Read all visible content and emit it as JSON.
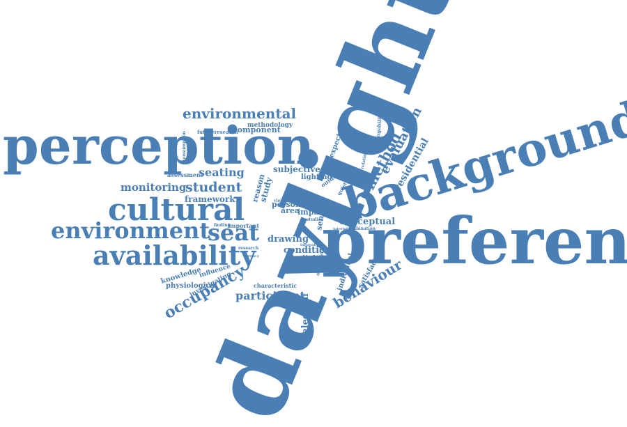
{
  "colors": {
    "word": "#4a7fb5",
    "background": "#ffffff"
  },
  "words": {
    "daylight": "daylight",
    "preference": "preference",
    "background": "background",
    "perception": "perception",
    "cultural": "cultural",
    "environment": "environment",
    "availability": "availability",
    "seat": "seat",
    "behaviour": "behaviour",
    "occupancy": "occupancy",
    "participant": "participant",
    "environmental": "environmental",
    "method": "method",
    "evaluation": "evaluation",
    "residential": "residential",
    "seating": "seating",
    "student": "student",
    "monitoring": "monitoring",
    "framework": "framework",
    "conceptual": "conceptual",
    "drawing": "drawing",
    "condition": "condition",
    "component": "component",
    "methodology": "methodology",
    "futureresearch": "futureresearch",
    "assessment": "assessment",
    "subjective": "subjective",
    "lighting": "lighting",
    "study": "study",
    "reason": "reason",
    "person": "person",
    "area": "area",
    "impact": "impact",
    "context": "context",
    "sensor": "sensor",
    "expectation": "expectation",
    "learningabilities": "learningabilities",
    "satisfaction": "satisfaction",
    "individual": "individual",
    "selection": "selection",
    "knowledge": "knowledge",
    "influence": "influence",
    "physiological": "physiological",
    "investigating": "investigating",
    "characteristic": "characteristic",
    "daylighting": "daylighting",
    "important": "important",
    "research": "research",
    "combination": "combination",
    "outdoor": "outdoor",
    "highlighted": "highlighted",
    "occupied": "occupied",
    "finding": "finding",
    "studies": "studies",
    "quietness": "quietness",
    "relationship": "relationship",
    "consumption": "consumption",
    "interior": "interior",
    "view": "view",
    "level": "level",
    "space": "space",
    "actual": "actual",
    "different": "different",
    "limited": "limited",
    "privacy": "privacy",
    "energy": "energy",
    "previous": "previous",
    "luminance": "luminance",
    "factor": "factor",
    "visual": "visual",
    "indoor": "indoor",
    "window": "window",
    "glare": "glare",
    "noise": "noise",
    "design": "design",
    "user": "user",
    "comfort": "comfort",
    "climate": "climate",
    "influential": "influential",
    "desk": "desk",
    "result": "result",
    "library": "library",
    "natural": "natural",
    "light": "light",
    "time": "time",
    "zone": "zone",
    "trust": "trust",
    "vision": "vision"
  }
}
